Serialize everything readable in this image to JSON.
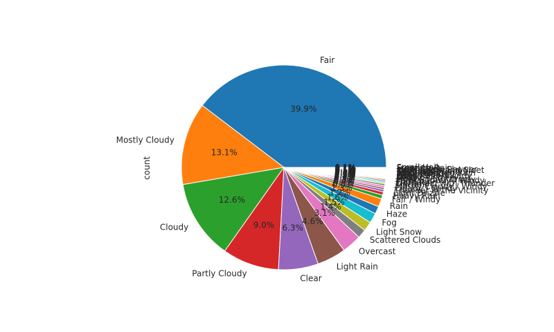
{
  "chart_data": {
    "type": "pie",
    "ylabel": "count",
    "start_angle_deg": 0,
    "direction": "counterclockwise",
    "slices": [
      {
        "label": "Fair",
        "value": 39.9,
        "pct_label": "39.9%",
        "color": "#1f77b4"
      },
      {
        "label": "Mostly Cloudy",
        "value": 13.1,
        "pct_label": "13.1%",
        "color": "#ff7f0e"
      },
      {
        "label": "Cloudy",
        "value": 12.6,
        "pct_label": "12.6%",
        "color": "#2ca02c"
      },
      {
        "label": "Partly Cloudy",
        "value": 9.0,
        "pct_label": "9.0%",
        "color": "#d62728"
      },
      {
        "label": "Clear",
        "value": 6.3,
        "pct_label": "6.3%",
        "color": "#9467bd"
      },
      {
        "label": "Light Rain",
        "value": 4.6,
        "pct_label": "4.6%",
        "color": "#8c564b"
      },
      {
        "label": "Overcast",
        "value": 3.1,
        "pct_label": "3.1%",
        "color": "#e377c2"
      },
      {
        "label": "Scattered Clouds",
        "value": 1.4,
        "pct_label": "1.4%",
        "color": "#7f7f7f"
      },
      {
        "label": "Light Snow",
        "value": 1.5,
        "pct_label": "1.5%",
        "color": "#bcbd22"
      },
      {
        "label": "Fog",
        "value": 1.6,
        "pct_label": "1.6%",
        "color": "#17becf"
      },
      {
        "label": "Haze",
        "value": 1.2,
        "pct_label": "1.2%",
        "color": "#1f77b4"
      },
      {
        "label": "Rain",
        "value": 1.3,
        "pct_label": "1.3%",
        "color": "#ff7f0e"
      },
      {
        "label": "Fair / Windy",
        "value": 0.6,
        "pct_label": "0.6%",
        "color": "#2ca02c"
      },
      {
        "label": "Heavy Rain",
        "value": 0.5,
        "pct_label": "0.5%",
        "color": "#d62728"
      },
      {
        "label": "Light Drizzle",
        "value": 0.4,
        "pct_label": "0.4%",
        "color": "#9467bd"
      },
      {
        "label": "Thunder in the Vicinity",
        "value": 0.3,
        "pct_label": "0.3%",
        "color": "#8c564b"
      },
      {
        "label": "Cloudy / Windy",
        "value": 0.3,
        "pct_label": "0.3%",
        "color": "#e377c2"
      },
      {
        "label": "Mostly Cloudy / Windy",
        "value": 0.3,
        "pct_label": "0.3%",
        "color": "#7f7f7f"
      },
      {
        "label": "T-Storm",
        "value": 0.2,
        "pct_label": "0.2%",
        "color": "#bcbd22"
      },
      {
        "label": "Light Rain with Thunder",
        "value": 0.2,
        "pct_label": "0.2%",
        "color": "#17becf"
      },
      {
        "label": "Thunder",
        "value": 0.2,
        "pct_label": "0.2%",
        "color": "#1f77b4"
      },
      {
        "label": "Partly Cloudy / Windy",
        "value": 0.2,
        "pct_label": "0.2%",
        "color": "#ff7f0e"
      },
      {
        "label": "Light Snow / Windy",
        "value": 0.1,
        "pct_label": "0.1%",
        "color": "#2ca02c"
      },
      {
        "label": "Heavy T-Storm",
        "value": 0.1,
        "pct_label": "0.1%",
        "color": "#d62728"
      },
      {
        "label": "Mist",
        "value": 0.1,
        "pct_label": "0.1%",
        "color": "#9467bd"
      },
      {
        "label": "Drizzle",
        "value": 0.1,
        "pct_label": "0.1%",
        "color": "#8c564b"
      },
      {
        "label": "Snow",
        "value": 0.1,
        "pct_label": "0.1%",
        "color": "#e377c2"
      },
      {
        "label": "Light Rain / Windy",
        "value": 0.1,
        "pct_label": "0.1%",
        "color": "#7f7f7f"
      },
      {
        "label": "Heavy Snow",
        "value": 0.1,
        "pct_label": "0.1%",
        "color": "#bcbd22"
      },
      {
        "label": "Wintry Mix",
        "value": 0.1,
        "pct_label": "0.1%",
        "color": "#17becf"
      },
      {
        "label": "Rain / Windy",
        "value": 0.1,
        "pct_label": "0.1%",
        "color": "#1f77b4"
      },
      {
        "label": "Light Freezing Rain",
        "value": 0.1,
        "pct_label": "0.1%",
        "color": "#ff7f0e"
      },
      {
        "label": "Small Hail",
        "value": 0.1,
        "pct_label": "0.1%",
        "color": "#2ca02c"
      },
      {
        "label": "T-Storm / Windy",
        "value": 0.1,
        "pct_label": "0.1%",
        "color": "#d62728"
      },
      {
        "label": "Squalls",
        "value": 0.1,
        "pct_label": "0.1%",
        "color": "#9467bd"
      },
      {
        "label": "Light Snow and Sleet",
        "value": 0.1,
        "pct_label": "0.1%",
        "color": "#8c564b"
      },
      {
        "label": "Heavy Rain Shower",
        "value": 0.1,
        "pct_label": "0.1%",
        "color": "#e377c2"
      },
      {
        "label": "Light Sleet",
        "value": 0.1,
        "pct_label": "0.1%",
        "color": "#7f7f7f"
      },
      {
        "label": "Freezing Rain",
        "value": 0.1,
        "pct_label": "0.1%",
        "color": "#bcbd22"
      },
      {
        "label": "Small Hail",
        "value": 0.1,
        "pct_label": "0.1%",
        "color": "#17becf"
      }
    ]
  }
}
